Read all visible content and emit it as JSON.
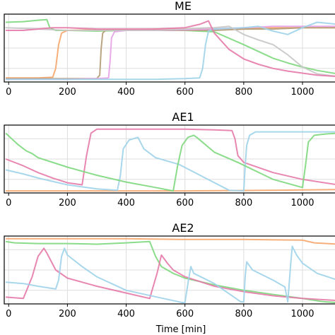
{
  "chart_data": [
    {
      "type": "line",
      "title": "ME",
      "xlabel": "",
      "ylabel": "",
      "xlim": [
        -15,
        1125
      ],
      "ylim": [
        0,
        1
      ],
      "xticks": [
        0,
        200,
        400,
        600,
        800,
        1000
      ],
      "xtick_labels": [
        "0",
        "200",
        "400",
        "600",
        "800",
        "1000"
      ],
      "grid": true,
      "series": [
        {
          "color": "#7dd87d",
          "x": [
            -10,
            50,
            100,
            130,
            140,
            160,
            200,
            300,
            400,
            500,
            600,
            700,
            800,
            850,
            900,
            950,
            1000,
            1050,
            1120
          ],
          "y": [
            0.88,
            0.89,
            0.91,
            0.92,
            0.8,
            0.76,
            0.76,
            0.75,
            0.76,
            0.76,
            0.76,
            0.74,
            0.55,
            0.45,
            0.35,
            0.28,
            0.22,
            0.17,
            0.12
          ]
        },
        {
          "color": "#f5a66b",
          "x": [
            -10,
            100,
            150,
            160,
            170,
            180,
            200,
            300,
            400,
            500,
            600,
            700,
            800,
            900,
            1000,
            1120
          ],
          "y": [
            0.06,
            0.06,
            0.07,
            0.2,
            0.55,
            0.72,
            0.76,
            0.77,
            0.77,
            0.78,
            0.78,
            0.78,
            0.78,
            0.8,
            0.8,
            0.8
          ]
        },
        {
          "color": "#b39b74",
          "x": [
            -10,
            100,
            200,
            300,
            310,
            315,
            320,
            330,
            400,
            500,
            600,
            700,
            800,
            900,
            1000,
            1120
          ],
          "y": [
            0.05,
            0.05,
            0.05,
            0.05,
            0.1,
            0.5,
            0.72,
            0.76,
            0.76,
            0.76,
            0.76,
            0.76,
            0.78,
            0.78,
            0.8,
            0.8
          ]
        },
        {
          "color": "#e6a2e6",
          "x": [
            -10,
            100,
            200,
            300,
            340,
            345,
            350,
            360,
            400,
            500,
            600,
            700,
            800,
            900,
            1000,
            1120
          ],
          "y": [
            0.04,
            0.04,
            0.04,
            0.05,
            0.06,
            0.3,
            0.65,
            0.74,
            0.76,
            0.76,
            0.77,
            0.78,
            0.8,
            0.82,
            0.82,
            0.82
          ]
        },
        {
          "color": "#9ed3ea",
          "x": [
            -10,
            100,
            200,
            300,
            400,
            500,
            600,
            650,
            660,
            670,
            680,
            700,
            800,
            850,
            900,
            950,
            1000,
            1050,
            1120
          ],
          "y": [
            0.04,
            0.04,
            0.04,
            0.04,
            0.04,
            0.04,
            0.05,
            0.06,
            0.2,
            0.55,
            0.75,
            0.78,
            0.8,
            0.82,
            0.75,
            0.7,
            0.8,
            0.88,
            0.85
          ]
        },
        {
          "color": "#c6c6c6",
          "x": [
            -10,
            100,
            200,
            300,
            400,
            500,
            600,
            680,
            700,
            750,
            800,
            850,
            900,
            950,
            1000,
            1050,
            1120
          ],
          "y": [
            0.8,
            0.78,
            0.76,
            0.76,
            0.76,
            0.76,
            0.78,
            0.8,
            0.8,
            0.82,
            0.7,
            0.62,
            0.55,
            0.4,
            0.22,
            0.12,
            0.08
          ]
        },
        {
          "color": "#e67aa8",
          "x": [
            -10,
            50,
            100,
            150,
            200,
            300,
            400,
            500,
            600,
            650,
            680,
            700,
            750,
            800,
            850,
            900,
            950,
            1000,
            1050,
            1120
          ],
          "y": [
            0.76,
            0.76,
            0.78,
            0.8,
            0.8,
            0.78,
            0.78,
            0.78,
            0.8,
            0.85,
            0.9,
            0.72,
            0.48,
            0.34,
            0.26,
            0.2,
            0.16,
            0.13,
            0.1,
            0.08
          ]
        }
      ]
    },
    {
      "type": "line",
      "title": "AE1",
      "xlabel": "",
      "ylabel": "",
      "xlim": [
        -15,
        1125
      ],
      "ylim": [
        0,
        1
      ],
      "xticks": [
        0,
        200,
        400,
        600,
        800,
        1000
      ],
      "xtick_labels": [
        "0",
        "200",
        "400",
        "600",
        "800",
        "1000"
      ],
      "grid": true,
      "series": [
        {
          "color": "#f5a66b",
          "x": [
            -10,
            300,
            600,
            900,
            1120
          ],
          "y": [
            0.03,
            0.03,
            0.03,
            0.04,
            0.05
          ]
        },
        {
          "color": "#e67aa8",
          "x": [
            -10,
            50,
            100,
            150,
            200,
            250,
            265,
            280,
            300,
            400,
            500,
            600,
            700,
            760,
            770,
            780,
            800,
            900,
            1000,
            1120
          ],
          "y": [
            0.5,
            0.4,
            0.3,
            0.22,
            0.15,
            0.12,
            0.55,
            0.88,
            0.94,
            0.94,
            0.94,
            0.94,
            0.93,
            0.92,
            0.8,
            0.55,
            0.45,
            0.3,
            0.2,
            0.12
          ]
        },
        {
          "color": "#9ed3ea",
          "x": [
            -10,
            50,
            100,
            200,
            300,
            370,
            380,
            390,
            410,
            440,
            460,
            500,
            580,
            750,
            800,
            805,
            810,
            820,
            840,
            900,
            1000,
            1120
          ],
          "y": [
            0.34,
            0.28,
            0.22,
            0.12,
            0.06,
            0.04,
            0.25,
            0.65,
            0.78,
            0.82,
            0.65,
            0.52,
            0.42,
            0.04,
            0.03,
            0.4,
            0.7,
            0.85,
            0.9,
            0.9,
            0.9,
            0.9
          ]
        },
        {
          "color": "#7dd87d",
          "x": [
            -10,
            10,
            30,
            60,
            80,
            100,
            200,
            300,
            400,
            500,
            560,
            575,
            590,
            610,
            630,
            640,
            700,
            780,
            900,
            1000,
            1010,
            1020,
            1040,
            1080,
            1120
          ],
          "y": [
            0.88,
            0.8,
            0.72,
            0.62,
            0.58,
            0.52,
            0.38,
            0.26,
            0.16,
            0.08,
            0.03,
            0.4,
            0.7,
            0.82,
            0.85,
            0.82,
            0.6,
            0.45,
            0.2,
            0.08,
            0.4,
            0.75,
            0.85,
            0.87,
            0.88
          ]
        }
      ]
    },
    {
      "type": "line",
      "title": "AE2",
      "xlabel": "Time [min]",
      "ylabel": "",
      "xlim": [
        -15,
        1125
      ],
      "ylim": [
        0,
        1
      ],
      "xticks": [
        0,
        200,
        400,
        600,
        800,
        1000
      ],
      "xtick_labels": [
        "0",
        "200",
        "400",
        "600",
        "800",
        "1000"
      ],
      "grid": true,
      "series": [
        {
          "color": "#f5a66b",
          "x": [
            -10,
            200,
            400,
            600,
            800,
            1000,
            1040,
            1120
          ],
          "y": [
            0.96,
            0.96,
            0.96,
            0.95,
            0.95,
            0.94,
            0.9,
            0.88
          ]
        },
        {
          "color": "#7dd87d",
          "x": [
            -10,
            20,
            100,
            200,
            300,
            400,
            480,
            500,
            520,
            560,
            600,
            700,
            800,
            900,
            1000,
            1060,
            1080,
            1120
          ],
          "y": [
            0.92,
            0.9,
            0.89,
            0.89,
            0.88,
            0.9,
            0.92,
            0.7,
            0.55,
            0.45,
            0.38,
            0.28,
            0.2,
            0.14,
            0.08,
            0.04,
            0.03,
            0.02
          ]
        },
        {
          "color": "#e67aa8",
          "x": [
            -10,
            50,
            80,
            100,
            120,
            130,
            160,
            200,
            300,
            400,
            480,
            505,
            520,
            540,
            560,
            600,
            700,
            800,
            900,
            1000,
            1120
          ],
          "y": [
            0.1,
            0.08,
            0.4,
            0.7,
            0.82,
            0.75,
            0.5,
            0.38,
            0.26,
            0.16,
            0.08,
            0.45,
            0.72,
            0.6,
            0.5,
            0.4,
            0.26,
            0.18,
            0.12,
            0.08,
            0.05
          ]
        },
        {
          "color": "#9ed3ea",
          "x": [
            -10,
            50,
            100,
            160,
            170,
            180,
            190,
            200,
            250,
            300,
            400,
            590,
            600,
            610,
            620,
            630,
            700,
            790,
            800,
            805,
            810,
            830,
            900,
            940,
            950,
            960,
            965,
            980,
            1000,
            1050,
            1120
          ],
          "y": [
            0.32,
            0.3,
            0.26,
            0.22,
            0.35,
            0.7,
            0.82,
            0.72,
            0.55,
            0.4,
            0.2,
            0.02,
            0.02,
            0.3,
            0.55,
            0.45,
            0.3,
            0.03,
            0.03,
            0.4,
            0.62,
            0.5,
            0.35,
            0.25,
            0.03,
            0.6,
            0.85,
            0.72,
            0.6,
            0.45,
            0.35
          ]
        }
      ]
    }
  ]
}
